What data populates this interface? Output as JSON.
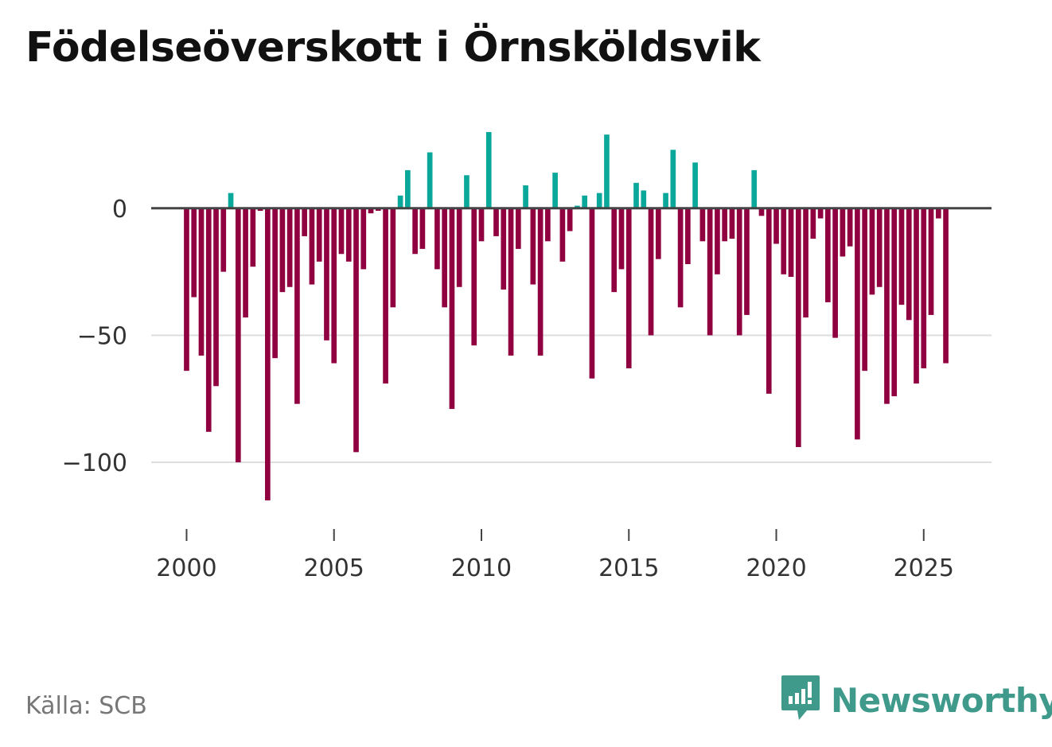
{
  "title": "Födelseöverskott i Örnsköldsvik",
  "source": "Källa: SCB",
  "brand": {
    "name": "Newsworthy",
    "icon": "newsworthy-logo-icon"
  },
  "colors": {
    "positive": "#0aa89a",
    "negative": "#900040",
    "axis": "#444444",
    "grid": "#dddddd",
    "brand": "#3f9a8c"
  },
  "chart_data": {
    "type": "bar",
    "title": "Födelseöverskott i Örnsköldsvik",
    "xlabel": "",
    "ylabel": "",
    "ylim": [
      -120,
      35
    ],
    "xlim": [
      1998.8,
      2027.3
    ],
    "grid": true,
    "yticks": [
      0,
      -50,
      -100
    ],
    "ytick_labels": [
      "0",
      "−50",
      "−100"
    ],
    "xticks": [
      2000,
      2005,
      2010,
      2015,
      2020,
      2025
    ],
    "xtick_labels": [
      "2000",
      "2005",
      "2010",
      "2015",
      "2020",
      "2025"
    ],
    "start": 2000.0,
    "step": 0.25,
    "values": [
      -64,
      -35,
      -58,
      -88,
      -70,
      -25,
      6,
      -100,
      -43,
      -23,
      -1,
      -115,
      -59,
      -33,
      -31,
      -77,
      -11,
      -30,
      -21,
      -52,
      -61,
      -18,
      -21,
      -96,
      -24,
      -2,
      -1,
      -69,
      -39,
      5,
      15,
      -18,
      -16,
      22,
      -24,
      -39,
      -79,
      -31,
      13,
      -54,
      -13,
      30,
      -11,
      -32,
      -58,
      -16,
      9,
      -30,
      -58,
      -13,
      14,
      -21,
      -9,
      1,
      5,
      -67,
      6,
      29,
      -33,
      -24,
      -63,
      10,
      7,
      -50,
      -20,
      6,
      23,
      -39,
      -22,
      18,
      -13,
      -50,
      -26,
      -13,
      -12,
      -50,
      -42,
      15,
      -3,
      -73,
      -14,
      -26,
      -27,
      -94,
      -43,
      -12,
      -4,
      -37,
      -51,
      -19,
      -15,
      -91,
      -64,
      -34,
      -31,
      -77,
      -74,
      -38,
      -44,
      -69,
      -63,
      -42,
      -4,
      -61
    ]
  }
}
